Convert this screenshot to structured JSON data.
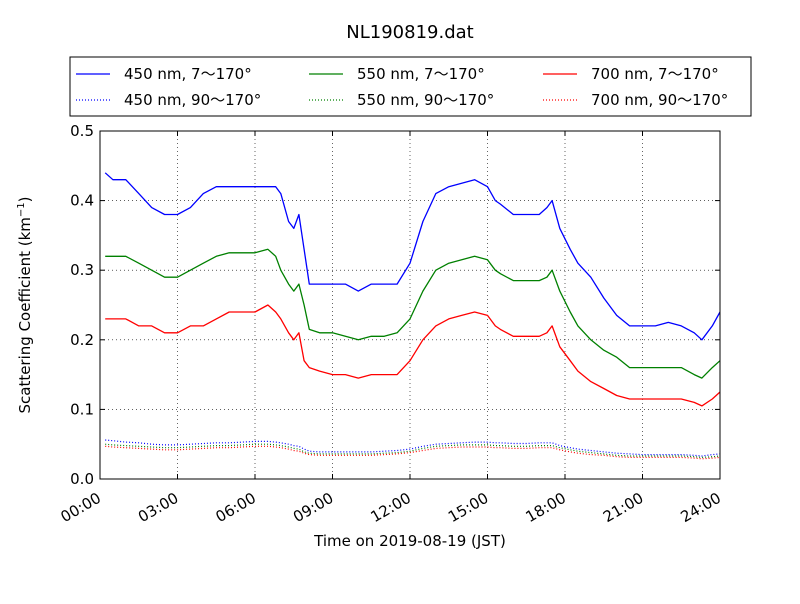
{
  "chart_data": {
    "type": "line",
    "title": "NL190819.dat",
    "xlabel": "Time on 2019-08-19 (JST)",
    "ylabel": "Scattering Coefficient (km",
    "ylabel_sup": "−1",
    "ylabel_end": ")",
    "xlim": [
      0,
      24
    ],
    "ylim": [
      0,
      0.5
    ],
    "grid": true,
    "legend_position": "top",
    "x_ticks": [
      0,
      3,
      6,
      9,
      12,
      15,
      18,
      21,
      24
    ],
    "x_tick_labels": [
      "00:00",
      "03:00",
      "06:00",
      "09:00",
      "12:00",
      "15:00",
      "18:00",
      "21:00",
      "24:00"
    ],
    "y_ticks": [
      0,
      0.1,
      0.2,
      0.3,
      0.4,
      0.5
    ],
    "y_tick_labels": [
      "0.0",
      "0.1",
      "0.2",
      "0.3",
      "0.4",
      "0.5"
    ],
    "x": [
      0.2,
      0.5,
      1,
      1.5,
      2,
      2.5,
      3,
      3.5,
      4,
      4.5,
      5,
      5.5,
      6,
      6.5,
      6.8,
      7,
      7.3,
      7.5,
      7.7,
      7.9,
      8.1,
      8.5,
      9,
      9.5,
      10,
      10.5,
      11,
      11.5,
      12,
      12.5,
      13,
      13.5,
      14,
      14.5,
      15,
      15.3,
      15.5,
      16,
      16.5,
      17,
      17.3,
      17.5,
      17.8,
      18.2,
      18.5,
      19,
      19.5,
      20,
      20.5,
      21,
      21.5,
      22,
      22.5,
      23,
      23.3,
      23.7,
      24
    ],
    "series": [
      {
        "name": "450 nm, 7～170°",
        "color": "#0000ff",
        "style": "solid",
        "values": [
          0.44,
          0.43,
          0.43,
          0.41,
          0.39,
          0.38,
          0.38,
          0.39,
          0.41,
          0.42,
          0.42,
          0.42,
          0.42,
          0.42,
          0.42,
          0.41,
          0.37,
          0.36,
          0.38,
          0.33,
          0.28,
          0.28,
          0.28,
          0.28,
          0.27,
          0.28,
          0.28,
          0.28,
          0.31,
          0.37,
          0.41,
          0.42,
          0.425,
          0.43,
          0.42,
          0.4,
          0.395,
          0.38,
          0.38,
          0.38,
          0.39,
          0.4,
          0.36,
          0.33,
          0.31,
          0.29,
          0.26,
          0.235,
          0.22,
          0.22,
          0.22,
          0.225,
          0.22,
          0.21,
          0.2,
          0.22,
          0.24
        ]
      },
      {
        "name": "550 nm, 7～170°",
        "color": "#008000",
        "style": "solid",
        "values": [
          0.32,
          0.32,
          0.32,
          0.31,
          0.3,
          0.29,
          0.29,
          0.3,
          0.31,
          0.32,
          0.325,
          0.325,
          0.325,
          0.33,
          0.32,
          0.3,
          0.28,
          0.27,
          0.28,
          0.25,
          0.215,
          0.21,
          0.21,
          0.205,
          0.2,
          0.205,
          0.205,
          0.21,
          0.23,
          0.27,
          0.3,
          0.31,
          0.315,
          0.32,
          0.315,
          0.3,
          0.295,
          0.285,
          0.285,
          0.285,
          0.29,
          0.3,
          0.27,
          0.24,
          0.22,
          0.2,
          0.185,
          0.175,
          0.16,
          0.16,
          0.16,
          0.16,
          0.16,
          0.15,
          0.145,
          0.16,
          0.17
        ]
      },
      {
        "name": "700 nm, 7～170°",
        "color": "#ff0000",
        "style": "solid",
        "values": [
          0.23,
          0.23,
          0.23,
          0.22,
          0.22,
          0.21,
          0.21,
          0.22,
          0.22,
          0.23,
          0.24,
          0.24,
          0.24,
          0.25,
          0.24,
          0.23,
          0.21,
          0.2,
          0.21,
          0.17,
          0.16,
          0.155,
          0.15,
          0.15,
          0.145,
          0.15,
          0.15,
          0.15,
          0.17,
          0.2,
          0.22,
          0.23,
          0.235,
          0.24,
          0.235,
          0.22,
          0.215,
          0.205,
          0.205,
          0.205,
          0.21,
          0.22,
          0.19,
          0.17,
          0.155,
          0.14,
          0.13,
          0.12,
          0.115,
          0.115,
          0.115,
          0.115,
          0.115,
          0.11,
          0.105,
          0.115,
          0.125
        ]
      },
      {
        "name": "450 nm, 90～170°",
        "color": "#0000ff",
        "style": "dotted",
        "values": [
          0.056,
          0.055,
          0.053,
          0.052,
          0.05,
          0.049,
          0.049,
          0.05,
          0.051,
          0.052,
          0.052,
          0.053,
          0.054,
          0.054,
          0.053,
          0.052,
          0.05,
          0.048,
          0.047,
          0.043,
          0.04,
          0.039,
          0.039,
          0.039,
          0.039,
          0.039,
          0.04,
          0.041,
          0.043,
          0.047,
          0.05,
          0.051,
          0.052,
          0.053,
          0.053,
          0.052,
          0.052,
          0.051,
          0.051,
          0.052,
          0.052,
          0.052,
          0.048,
          0.045,
          0.043,
          0.041,
          0.039,
          0.037,
          0.036,
          0.035,
          0.035,
          0.035,
          0.035,
          0.034,
          0.033,
          0.035,
          0.036
        ]
      },
      {
        "name": "550 nm, 90～170°",
        "color": "#008000",
        "style": "dotted",
        "values": [
          0.05,
          0.049,
          0.048,
          0.047,
          0.046,
          0.045,
          0.045,
          0.046,
          0.047,
          0.048,
          0.048,
          0.049,
          0.05,
          0.05,
          0.049,
          0.048,
          0.046,
          0.044,
          0.043,
          0.039,
          0.037,
          0.036,
          0.036,
          0.036,
          0.036,
          0.036,
          0.037,
          0.038,
          0.04,
          0.044,
          0.047,
          0.048,
          0.049,
          0.049,
          0.049,
          0.048,
          0.048,
          0.047,
          0.047,
          0.048,
          0.048,
          0.048,
          0.045,
          0.042,
          0.04,
          0.038,
          0.036,
          0.034,
          0.033,
          0.033,
          0.033,
          0.033,
          0.033,
          0.032,
          0.031,
          0.032,
          0.033
        ]
      },
      {
        "name": "700 nm, 90～170°",
        "color": "#ff0000",
        "style": "dotted",
        "values": [
          0.047,
          0.046,
          0.045,
          0.044,
          0.043,
          0.042,
          0.042,
          0.043,
          0.044,
          0.045,
          0.045,
          0.046,
          0.047,
          0.047,
          0.046,
          0.045,
          0.043,
          0.041,
          0.04,
          0.037,
          0.035,
          0.034,
          0.034,
          0.034,
          0.034,
          0.034,
          0.035,
          0.036,
          0.038,
          0.041,
          0.044,
          0.045,
          0.046,
          0.046,
          0.046,
          0.045,
          0.045,
          0.044,
          0.044,
          0.045,
          0.045,
          0.045,
          0.042,
          0.039,
          0.037,
          0.035,
          0.034,
          0.032,
          0.031,
          0.031,
          0.031,
          0.031,
          0.031,
          0.03,
          0.029,
          0.03,
          0.031
        ]
      }
    ]
  }
}
